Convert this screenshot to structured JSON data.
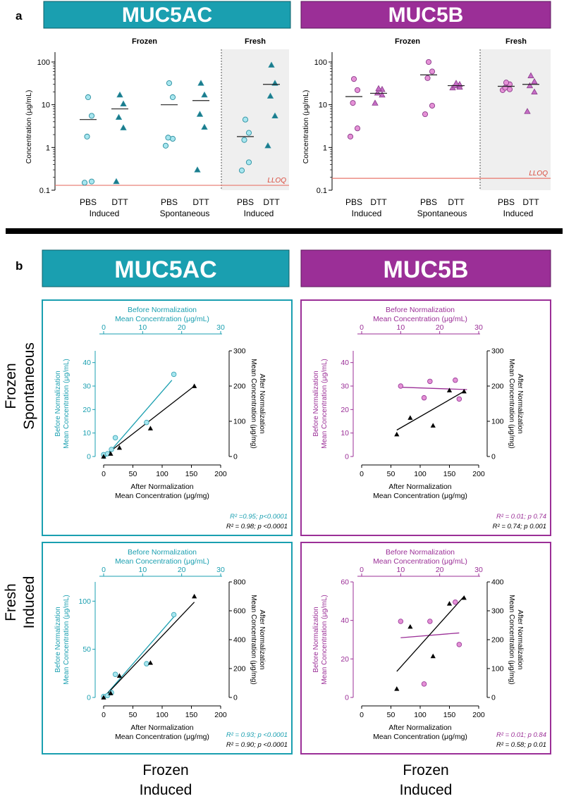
{
  "panel_a": {
    "label": "a",
    "titles": [
      "MUC5AC",
      "MUC5B"
    ],
    "group_headers": [
      "Frozen",
      "Fresh"
    ],
    "tick_x": [
      "PBS",
      "DTT"
    ],
    "group_labels": [
      "Induced",
      "Spontaneous",
      "Induced"
    ]
  },
  "panel_b": {
    "label": "b",
    "titles": [
      "MUC5AC",
      "MUC5B"
    ],
    "top_axis_title": [
      "Before Normalization",
      "Mean Concentration (μg/mL)"
    ],
    "bottom_axis_title": [
      "After Normalization",
      "Mean Concentration (μg/mg)"
    ],
    "left_axis_title": [
      "Before Normalization",
      "Mean Concentration (μg/mL)"
    ],
    "right_axis_title": [
      "After Normalization",
      "Mean Concentration (μg/mg)"
    ],
    "row_labels": [
      [
        "Frozen",
        "Spontaneous"
      ],
      [
        "Fresh",
        "Induced"
      ]
    ],
    "col_labels": [
      [
        "Frozen",
        "Induced"
      ],
      [
        "Frozen",
        "Induced"
      ]
    ]
  },
  "colors": {
    "teal": "#1a9fb0",
    "purple": "#9b2f97",
    "circle_teal": "#a8e6ef",
    "circle_pink": "#e591d6",
    "lloq": "#e8776c",
    "shade": "#efefef"
  },
  "chart_data": [
    {
      "type": "scatter",
      "id": "a-muc5ac",
      "title": "MUC5AC",
      "ylabel": "Concentration (μg/mL)",
      "yscale": "log",
      "ylim": [
        0.1,
        100
      ],
      "yticks": [
        "0.1",
        "1",
        "10",
        "100"
      ],
      "lloq": {
        "label": "LLOQ",
        "value": 0.13
      },
      "groups": [
        {
          "name": "Induced",
          "storage": "Frozen",
          "series": [
            {
              "name": "PBS",
              "marker": "circle",
              "values": [
                0.15,
                0.16,
                1.8,
                5.5,
                15
              ],
              "mean": 4.5
            },
            {
              "name": "DTT",
              "marker": "triangle",
              "values": [
                0.16,
                2.9,
                5.1,
                10.5,
                17
              ],
              "mean": 8
            }
          ]
        },
        {
          "name": "Spontaneous",
          "storage": "Frozen",
          "series": [
            {
              "name": "PBS",
              "marker": "circle",
              "values": [
                1.1,
                1.6,
                1.7,
                15,
                32
              ],
              "mean": 10
            },
            {
              "name": "DTT",
              "marker": "triangle",
              "values": [
                0.3,
                3,
                6,
                17,
                32
              ],
              "mean": 12.5
            }
          ]
        },
        {
          "name": "Induced",
          "storage": "Fresh",
          "series": [
            {
              "name": "PBS",
              "marker": "circle",
              "values": [
                0.29,
                0.45,
                1.5,
                2.2,
                4.5
              ],
              "mean": 1.8
            },
            {
              "name": "DTT",
              "marker": "triangle",
              "values": [
                1.1,
                5.5,
                16,
                32,
                85
              ],
              "mean": 30
            }
          ]
        }
      ]
    },
    {
      "type": "scatter",
      "id": "a-muc5b",
      "title": "MUC5B",
      "ylabel": "Concentration (μg/mL)",
      "yscale": "log",
      "ylim": [
        0.1,
        100
      ],
      "yticks": [
        "0.1",
        "1",
        "10",
        "100"
      ],
      "lloq": {
        "label": "LLOQ",
        "value": 0.19
      },
      "groups": [
        {
          "name": "Induced",
          "storage": "Frozen",
          "series": [
            {
              "name": "PBS",
              "marker": "circle",
              "values": [
                1.8,
                2.8,
                11,
                22,
                40
              ],
              "mean": 15.5
            },
            {
              "name": "DTT",
              "marker": "triangle",
              "values": [
                11,
                17,
                19,
                23,
                24
              ],
              "mean": 18.5
            }
          ]
        },
        {
          "name": "Spontaneous",
          "storage": "Frozen",
          "series": [
            {
              "name": "PBS",
              "marker": "circle",
              "values": [
                6,
                9.5,
                42,
                60,
                100
              ],
              "mean": 50
            },
            {
              "name": "DTT",
              "marker": "triangle",
              "values": [
                25,
                26,
                28,
                30,
                32
              ],
              "mean": 28
            }
          ]
        },
        {
          "name": "Induced",
          "storage": "Fresh",
          "series": [
            {
              "name": "PBS",
              "marker": "circle",
              "values": [
                22,
                23,
                25,
                30,
                33
              ],
              "mean": 27
            },
            {
              "name": "DTT",
              "marker": "triangle",
              "values": [
                7,
                20,
                28,
                35,
                48
              ],
              "mean": 30
            }
          ]
        }
      ]
    },
    {
      "type": "scatter",
      "id": "b-muc5ac-frozen-spontaneous",
      "row": "Frozen Spontaneous",
      "marker": "MUC5AC",
      "x_bottom": {
        "label": "After Normalization Mean Concentration (μg/mg)",
        "lim": [
          0,
          200
        ],
        "ticks": [
          0,
          50,
          100,
          150,
          200
        ]
      },
      "x_top": {
        "label": "Before Normalization Mean Concentration (μg/mL)",
        "lim": [
          0,
          30
        ],
        "ticks": [
          0,
          10,
          20,
          30
        ]
      },
      "y_left": {
        "label": "Before Normalization Mean Concentration (μg/mL)",
        "lim": [
          0,
          45
        ],
        "ticks": [
          0,
          10,
          20,
          30,
          40
        ]
      },
      "y_right": {
        "label": "After Normalization Mean Concentration (μg/mg)",
        "lim": [
          0,
          300
        ],
        "ticks": [
          0,
          100,
          200,
          300
        ]
      },
      "before": {
        "x": [
          0,
          1,
          2,
          3,
          11,
          18
        ],
        "y": [
          0.8,
          1.2,
          3,
          8,
          14.5,
          35
        ],
        "fit": [
          [
            0,
            -1
          ],
          [
            17.5,
            32.5
          ]
        ]
      },
      "after": {
        "x": [
          0,
          12,
          27,
          80,
          155
        ],
        "y": [
          0,
          8,
          25,
          80,
          200
        ],
        "fit": [
          [
            0,
            0
          ],
          [
            155,
            200
          ]
        ]
      },
      "stats": [
        "R² =0.95; p<0.0001",
        "R² = 0.98; p <0.0001"
      ]
    },
    {
      "type": "scatter",
      "id": "b-muc5b-frozen-spontaneous",
      "row": "Frozen Spontaneous",
      "marker": "MUC5B",
      "x_bottom": {
        "label": "After Normalization Mean Concentration (μg/mg)",
        "lim": [
          0,
          200
        ],
        "ticks": [
          0,
          50,
          100,
          150,
          200
        ]
      },
      "x_top": {
        "label": "Before Normalization Mean Concentration (μg/mL)",
        "lim": [
          0,
          30
        ],
        "ticks": [
          0,
          10,
          20,
          30
        ]
      },
      "y_left": {
        "label": "Before Normalization Mean Concentration (μg/mL)",
        "lim": [
          0,
          45
        ],
        "ticks": [
          0,
          10,
          20,
          30,
          40
        ]
      },
      "y_right": {
        "label": "After Normalization Mean Concentration (μg/mg)",
        "lim": [
          0,
          300
        ],
        "ticks": [
          0,
          100,
          200,
          300
        ]
      },
      "before": {
        "x": [
          10,
          16,
          17.5,
          24,
          25
        ],
        "y": [
          30,
          25,
          32,
          32.5,
          24.5
        ],
        "fit": [
          [
            10,
            29.5
          ],
          [
            27,
            28.5
          ]
        ]
      },
      "after": {
        "x": [
          60,
          83,
          122,
          150,
          175
        ],
        "y": [
          63,
          110,
          88,
          188,
          185
        ],
        "fit": [
          [
            60,
            75
          ],
          [
            175,
            185
          ]
        ]
      },
      "stats": [
        "R² = 0.01; p 0.74",
        "R² = 0.74; p 0.001"
      ]
    },
    {
      "type": "scatter",
      "id": "b-muc5ac-fresh-induced",
      "row": "Fresh Induced",
      "marker": "MUC5AC",
      "x_bottom": {
        "label": "After Normalization Mean Concentration (μg/mg)",
        "lim": [
          0,
          200
        ],
        "ticks": [
          0,
          50,
          100,
          150,
          200
        ]
      },
      "x_top": {
        "label": "Before Normalization Mean Concentration (μg/mL)",
        "lim": [
          0,
          30
        ],
        "ticks": [
          0,
          10,
          20,
          30
        ]
      },
      "y_left": {
        "label": "Before Normalization Mean Concentration (μg/mL)",
        "lim": [
          0,
          120
        ],
        "ticks": [
          0,
          50,
          100
        ]
      },
      "y_right": {
        "label": "After Normalization Mean Concentration (μg/mg)",
        "lim": [
          0,
          800
        ],
        "ticks": [
          0,
          200,
          400,
          600,
          800
        ]
      },
      "before": {
        "x": [
          0,
          1,
          2,
          3,
          11,
          18
        ],
        "y": [
          1,
          2,
          5,
          24,
          35,
          86
        ],
        "fit": [
          [
            0,
            0
          ],
          [
            18.5,
            86
          ]
        ]
      },
      "after": {
        "x": [
          0,
          12,
          27,
          80,
          155
        ],
        "y": [
          0,
          30,
          150,
          240,
          700
        ],
        "fit": [
          [
            0,
            0
          ],
          [
            155,
            660
          ]
        ]
      },
      "stats": [
        "R² = 0.93; p <0.0001",
        "R² = 0.90; p <0.0001"
      ]
    },
    {
      "type": "scatter",
      "id": "b-muc5b-fresh-induced",
      "row": "Fresh Induced",
      "marker": "MUC5B",
      "x_bottom": {
        "label": "After Normalization Mean Concentration (μg/mg)",
        "lim": [
          0,
          200
        ],
        "ticks": [
          0,
          50,
          100,
          150,
          200
        ]
      },
      "x_top": {
        "label": "Before Normalization Mean Concentration (μg/mL)",
        "lim": [
          0,
          30
        ],
        "ticks": [
          0,
          10,
          20,
          30
        ]
      },
      "y_left": {
        "label": "Before Normalization Mean Concentration (μg/mL)",
        "lim": [
          0,
          60
        ],
        "ticks": [
          0,
          20,
          40,
          60
        ]
      },
      "y_right": {
        "label": "After Normalization Mean Concentration (μg/mg)",
        "lim": [
          0,
          400
        ],
        "ticks": [
          0,
          100,
          200,
          300,
          400
        ]
      },
      "before": {
        "x": [
          10,
          16,
          17.5,
          24,
          25
        ],
        "y": [
          39.5,
          7,
          39.5,
          49.5,
          27.5
        ],
        "fit": [
          [
            10,
            31
          ],
          [
            25,
            33.5
          ]
        ]
      },
      "after": {
        "x": [
          60,
          83,
          122,
          150,
          175
        ],
        "y": [
          30,
          245,
          143,
          325,
          345
        ],
        "fit": [
          [
            60,
            90
          ],
          [
            175,
            350
          ]
        ]
      },
      "stats": [
        "R² = 0.01; p 0.84",
        "R² = 0.58; p 0.01"
      ]
    }
  ]
}
